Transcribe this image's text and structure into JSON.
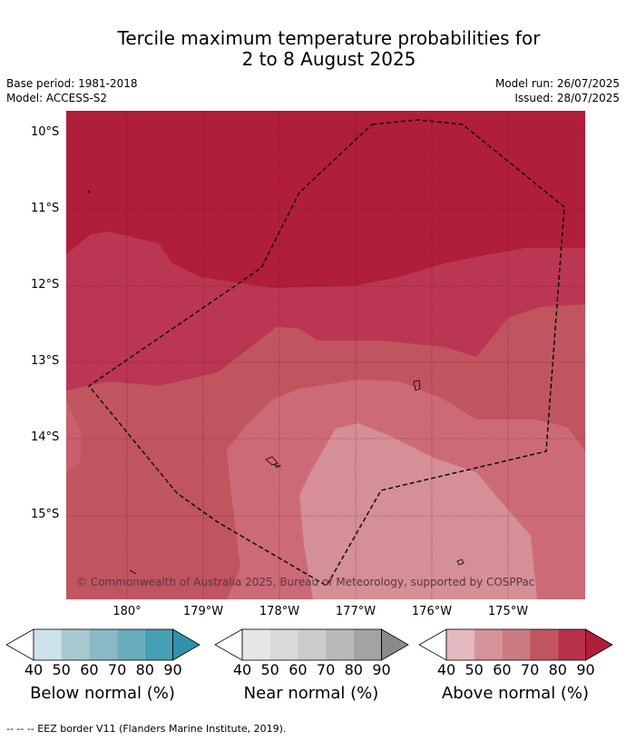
{
  "header": {
    "title_line1": "Tercile maximum temperature probabilities for",
    "title_line2": "2 to 8 August 2025",
    "base_period": "Base period: 1981-2018",
    "model": "Model: ACCESS-S2",
    "model_run": "Model run: 26/07/2025",
    "issued": "Issued: 28/07/2025"
  },
  "map": {
    "lat_labels": [
      "10°S",
      "11°S",
      "12°S",
      "13°S",
      "14°S",
      "15°S"
    ],
    "lon_labels": [
      "180°",
      "179°W",
      "178°W",
      "177°W",
      "176°W",
      "175°W"
    ],
    "copyright": "© Commonwealth of Australia 2025, Bureau of Meteorology, supported by COSPPac",
    "dominant_category": "Above normal",
    "eez_style": "dashed black line"
  },
  "legend": {
    "ticks": [
      "40",
      "50",
      "60",
      "70",
      "80",
      "90"
    ],
    "below": {
      "label": "Below normal (%)",
      "colors": [
        "#cde2ea",
        "#a9c9d1",
        "#8ab9c6",
        "#69acbb",
        "#44a0b2",
        "#2f92a8"
      ]
    },
    "near": {
      "label": "Near normal (%)",
      "colors": [
        "#e6e6e6",
        "#d9d9d9",
        "#cbcbcb",
        "#b8b8b8",
        "#a3a3a3",
        "#8a8a8a"
      ]
    },
    "above": {
      "label": "Above normal (%)",
      "colors": [
        "#e4bac0",
        "#d6939a",
        "#cc7b83",
        "#c05560",
        "#b8324a",
        "#b01e3a"
      ]
    }
  },
  "footnote": "--  --  -- EEZ border V11 (Flanders Marine Institute, 2019)."
}
